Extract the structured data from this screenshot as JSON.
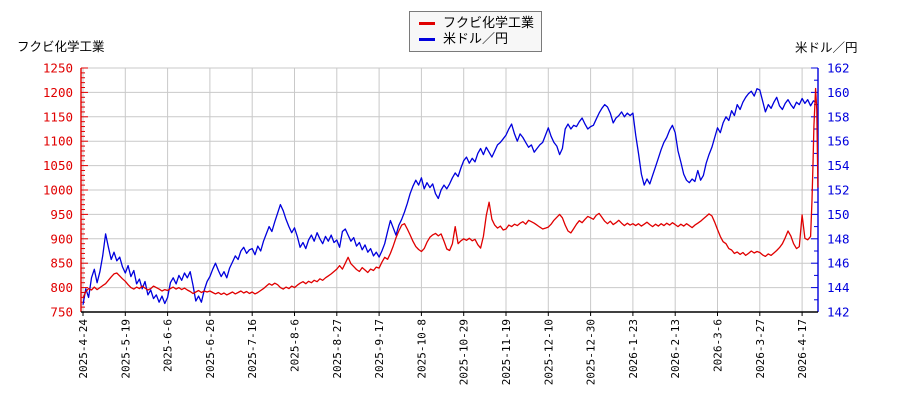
{
  "chart": {
    "titles": {
      "left": "フクビ化学工業",
      "right": "米ドル／円"
    },
    "legend": {
      "items": [
        {
          "label": "フクビ化学工業",
          "color": "#e00000"
        },
        {
          "label": "米ドル／円",
          "color": "#0000dd"
        }
      ]
    },
    "colors": {
      "background": "#ffffff",
      "grid": "#c9c9c9",
      "x_axis": "#000000",
      "left_axis": "#e00000",
      "right_axis": "#0000dd",
      "legend_bg": "#f7f7f7",
      "legend_border": "#7a7a7a"
    }
  },
  "chart_data": {
    "type": "line",
    "title": "",
    "grid": true,
    "legend_position": "top-center",
    "x_axis": {
      "unit": "trading-day index from 2025-4-24",
      "tick_labels": [
        "2025-4-24",
        "2025-5-19",
        "2025-6-6",
        "2025-6-26",
        "2025-7-16",
        "2025-8-6",
        "2025-8-27",
        "2025-9-17",
        "2025-10-8",
        "2025-10-29",
        "2025-11-19",
        "2025-12-10",
        "2025-12-30",
        "2026-1-23",
        "2026-2-13",
        "2026-3-6",
        "2026-3-27",
        "2026-4-17"
      ],
      "tick_t": [
        0,
        15,
        30,
        45,
        60,
        75,
        90,
        105,
        120,
        135,
        150,
        165,
        180,
        195,
        210,
        225,
        240,
        255
      ],
      "t_max": 260.6
    },
    "y_left": {
      "title": "フクビ化学工業",
      "min": 750,
      "max": 1250,
      "step": 50,
      "minor_step": 10,
      "tick_labels": [
        "750",
        "800",
        "850",
        "900",
        "950",
        "1000",
        "1050",
        "1100",
        "1150",
        "1200",
        "1250"
      ],
      "color": "#e00000"
    },
    "y_right": {
      "title": "米ドル／円",
      "min": 142,
      "max": 162,
      "step": 2,
      "minor_step": 1,
      "tick_labels": [
        "142",
        "144",
        "146",
        "148",
        "150",
        "152",
        "154",
        "156",
        "158",
        "160",
        "162"
      ],
      "color": "#0000dd"
    },
    "series": [
      {
        "name": "フクビ化学工業",
        "axis": "left",
        "color": "#e00000",
        "t_start": 0,
        "t_step": 1,
        "values": [
          778,
          792,
          798,
          795,
          801,
          796,
          800,
          804,
          808,
          815,
          822,
          828,
          830,
          824,
          818,
          813,
          806,
          800,
          797,
          801,
          798,
          803,
          799,
          795,
          798,
          803,
          800,
          797,
          793,
          796,
          794,
          798,
          801,
          797,
          800,
          796,
          799,
          795,
          792,
          788,
          791,
          794,
          790,
          793,
          791,
          793,
          790,
          787,
          790,
          786,
          789,
          785,
          788,
          791,
          787,
          790,
          793,
          789,
          792,
          788,
          791,
          787,
          790,
          794,
          798,
          803,
          808,
          805,
          809,
          806,
          800,
          797,
          801,
          798,
          803,
          800,
          805,
          809,
          812,
          808,
          813,
          810,
          815,
          812,
          818,
          815,
          820,
          824,
          828,
          833,
          838,
          845,
          838,
          850,
          862,
          849,
          843,
          837,
          833,
          841,
          836,
          831,
          838,
          835,
          842,
          840,
          852,
          862,
          858,
          870,
          885,
          902,
          916,
          928,
          931,
          920,
          908,
          895,
          884,
          878,
          874,
          880,
          893,
          903,
          908,
          911,
          906,
          910,
          895,
          879,
          876,
          890,
          925,
          890,
          896,
          900,
          897,
          901,
          896,
          899,
          888,
          881,
          905,
          948,
          975,
          940,
          928,
          922,
          926,
          918,
          920,
          928,
          925,
          930,
          927,
          932,
          935,
          930,
          938,
          935,
          932,
          928,
          924,
          920,
          922,
          924,
          930,
          938,
          944,
          950,
          943,
          928,
          916,
          912,
          921,
          930,
          937,
          933,
          940,
          946,
          943,
          940,
          948,
          952,
          944,
          936,
          931,
          936,
          929,
          933,
          938,
          932,
          927,
          932,
          928,
          931,
          927,
          931,
          926,
          930,
          934,
          929,
          925,
          930,
          926,
          931,
          927,
          932,
          928,
          933,
          929,
          925,
          930,
          926,
          931,
          927,
          923,
          928,
          932,
          936,
          941,
          946,
          951,
          947,
          934,
          919,
          905,
          894,
          890,
          880,
          877,
          870,
          873,
          868,
          872,
          866,
          870,
          875,
          871,
          874,
          872,
          867,
          864,
          869,
          866,
          871,
          876,
          882,
          890,
          902,
          916,
          906,
          890,
          880,
          884,
          949,
          901,
          898,
          905
        ],
        "extra_points": [
          [
            258.5,
            979
          ],
          [
            258.9,
            1061
          ],
          [
            259.2,
            1130
          ],
          [
            259.8,
            1208
          ],
          [
            260.2,
            1164
          ],
          [
            260.6,
            1005
          ]
        ]
      },
      {
        "name": "米ドル／円",
        "axis": "right",
        "color": "#0000dd",
        "t_start": 0,
        "t_step": 1,
        "values": [
          142.6,
          143.9,
          143.2,
          144.8,
          145.5,
          144.4,
          145.3,
          146.6,
          148.4,
          147.3,
          146.3,
          146.9,
          146.2,
          146.5,
          145.7,
          145.2,
          145.8,
          144.9,
          145.4,
          144.3,
          144.7,
          143.9,
          144.5,
          143.4,
          143.8,
          143.1,
          143.4,
          142.8,
          143.3,
          142.7,
          143.2,
          144.4,
          144.8,
          144.3,
          145.0,
          144.6,
          145.2,
          144.8,
          145.3,
          144.2,
          142.9,
          143.3,
          142.8,
          143.8,
          144.5,
          144.9,
          145.5,
          146.0,
          145.4,
          144.9,
          145.3,
          144.8,
          145.6,
          146.1,
          146.6,
          146.3,
          147.0,
          147.3,
          146.8,
          147.1,
          147.2,
          146.7,
          147.4,
          147.0,
          147.8,
          148.4,
          149.0,
          148.6,
          149.4,
          150.1,
          150.8,
          150.3,
          149.6,
          149.0,
          148.5,
          148.9,
          148.2,
          147.3,
          147.7,
          147.2,
          147.9,
          148.3,
          147.8,
          148.5,
          148.0,
          147.6,
          148.2,
          147.8,
          148.3,
          147.7,
          147.9,
          147.3,
          148.6,
          148.8,
          148.3,
          147.8,
          148.1,
          147.4,
          147.7,
          147.1,
          147.5,
          146.9,
          147.2,
          146.6,
          146.9,
          146.5,
          147.0,
          147.6,
          148.6,
          149.5,
          148.9,
          148.3,
          149.1,
          149.6,
          150.2,
          150.9,
          151.7,
          152.3,
          152.8,
          152.4,
          153.0,
          152.1,
          152.6,
          152.2,
          152.5,
          151.7,
          151.3,
          152.0,
          152.4,
          152.1,
          152.5,
          153.0,
          153.4,
          153.1,
          153.8,
          154.4,
          154.7,
          154.2,
          154.6,
          154.3,
          155.0,
          155.4,
          154.9,
          155.5,
          155.1,
          154.7,
          155.2,
          155.7,
          155.9,
          156.2,
          156.5,
          157.0,
          157.4,
          156.6,
          156.0,
          156.6,
          156.3,
          155.9,
          155.5,
          155.7,
          155.1,
          155.4,
          155.7,
          155.9,
          156.5,
          157.1,
          156.4,
          155.9,
          155.6,
          154.9,
          155.4,
          157.0,
          157.4,
          157.0,
          157.3,
          157.2,
          157.6,
          157.9,
          157.4,
          157.0,
          157.2,
          157.3,
          157.8,
          158.3,
          158.7,
          159.0,
          158.8,
          158.3,
          157.5,
          157.9,
          158.1,
          158.4,
          158.0,
          158.3,
          158.1,
          158.3,
          156.5,
          155.0,
          153.3,
          152.4,
          152.9,
          152.5,
          153.2,
          153.9,
          154.6,
          155.3,
          155.9,
          156.3,
          156.9,
          157.3,
          156.7,
          155.2,
          154.3,
          153.3,
          152.8,
          152.6,
          152.9,
          152.7,
          153.6,
          152.8,
          153.2,
          154.2,
          154.9,
          155.5,
          156.3,
          157.1,
          156.7,
          157.5,
          158.0,
          157.7,
          158.5,
          158.1,
          159.0,
          158.6,
          159.2,
          159.6,
          159.9,
          160.1,
          159.7,
          160.3,
          160.2,
          159.3,
          158.4,
          159.0,
          158.7,
          159.2,
          159.6,
          158.9,
          158.6,
          159.1,
          159.4,
          159.0,
          158.7,
          159.2,
          159.0,
          159.5,
          159.1,
          159.4,
          158.9,
          159.3,
          159.2
        ],
        "extra_points": []
      }
    ]
  }
}
